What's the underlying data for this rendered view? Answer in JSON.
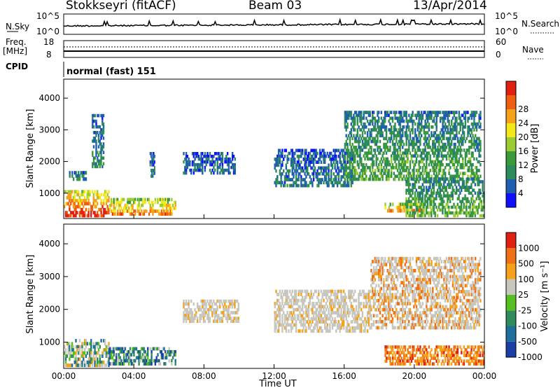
{
  "header": {
    "station": "Stokkseyri (fitACF)",
    "beam": "Beam 03",
    "date": "13/Apr/2014"
  },
  "noise_panel": {
    "left_label": "N.Sky",
    "right_label": "N.Search",
    "left_ticks": [
      "10^5",
      "10^0"
    ],
    "right_ticks": [
      "10^5",
      "10^0"
    ]
  },
  "freq_panel": {
    "left_label_1": "Freq.",
    "left_label_2": "[MHz]",
    "left_ticks": [
      "18",
      "8"
    ],
    "right_label": "Nave",
    "right_ticks": [
      "60",
      "0"
    ]
  },
  "cpid_panel": {
    "label": "CPID",
    "text": "normal (fast) 151"
  },
  "x_axis": {
    "label": "Time UT",
    "ticks": [
      "00:00",
      "04:00",
      "08:00",
      "12:00",
      "16:00",
      "20:00",
      "00:00"
    ]
  },
  "chart_data": [
    {
      "type": "heatmap",
      "name": "power",
      "ylabel": "Slant Range [km]",
      "yticks": [
        "1000",
        "2000",
        "3000",
        "4000"
      ],
      "ylim": [
        200,
        4600
      ],
      "xlim_hours": [
        0,
        24
      ],
      "colorbar": {
        "label": "Power [dB]",
        "ticks": [
          "4",
          "8",
          "12",
          "16",
          "20",
          "24",
          "28"
        ],
        "range": [
          0,
          32
        ],
        "colors": [
          "#1010ff",
          "#1f5fb0",
          "#2d8a5a",
          "#3a9a3a",
          "#9ccc33",
          "#f5e81a",
          "#f5a11a",
          "#ef5f12",
          "#e02010"
        ]
      },
      "regions": [
        {
          "t": [
            0.0,
            2.6
          ],
          "r": [
            250,
            1100
          ],
          "level": 1.0
        },
        {
          "t": [
            2.6,
            6.4
          ],
          "r": [
            300,
            850
          ],
          "level": 0.85
        },
        {
          "t": [
            0.3,
            1.3
          ],
          "r": [
            1400,
            1700
          ],
          "level": 0.35
        },
        {
          "t": [
            1.6,
            2.3
          ],
          "r": [
            1800,
            3500
          ],
          "level": 0.3
        },
        {
          "t": [
            4.9,
            5.2
          ],
          "r": [
            1500,
            2300
          ],
          "level": 0.25
        },
        {
          "t": [
            6.8,
            9.8
          ],
          "r": [
            1600,
            2300
          ],
          "level": 0.2
        },
        {
          "t": [
            12.0,
            16.5
          ],
          "r": [
            1200,
            2400
          ],
          "level": 0.25
        },
        {
          "t": [
            16.0,
            23.8
          ],
          "r": [
            1400,
            3600
          ],
          "level": 0.4
        },
        {
          "t": [
            18.3,
            20.6
          ],
          "r": [
            400,
            700
          ],
          "level": 0.9
        },
        {
          "t": [
            19.5,
            24.0
          ],
          "r": [
            250,
            1500
          ],
          "level": 0.45
        }
      ]
    },
    {
      "type": "heatmap",
      "name": "velocity",
      "ylabel": "Slant Range [km]",
      "yticks": [
        "1000",
        "2000",
        "3000",
        "4000"
      ],
      "ylim": [
        200,
        4600
      ],
      "xlim_hours": [
        0,
        24
      ],
      "colorbar": {
        "label": "Velocity [m s⁻¹]",
        "ticks": [
          "1000",
          "500",
          "100",
          "25",
          "-25",
          "-100",
          "-500",
          "-1000"
        ],
        "colors": [
          "#1c3fa6",
          "#1f6e9c",
          "#2f8a5c",
          "#55c020",
          "#c7c7c0",
          "#f5a11a",
          "#f07018",
          "#e02010"
        ]
      },
      "regions": [
        {
          "t": [
            0.0,
            2.6
          ],
          "r": [
            250,
            1100
          ],
          "class": "gray-green"
        },
        {
          "t": [
            2.6,
            6.4
          ],
          "r": [
            300,
            850
          ],
          "class": "green-blue"
        },
        {
          "t": [
            6.8,
            10.0
          ],
          "r": [
            1600,
            2300
          ],
          "class": "gray"
        },
        {
          "t": [
            12.0,
            17.5
          ],
          "r": [
            1300,
            2600
          ],
          "class": "gray"
        },
        {
          "t": [
            17.5,
            23.8
          ],
          "r": [
            1400,
            3600
          ],
          "class": "gray-orange"
        },
        {
          "t": [
            18.3,
            24.0
          ],
          "r": [
            300,
            900
          ],
          "class": "orange"
        }
      ]
    }
  ]
}
